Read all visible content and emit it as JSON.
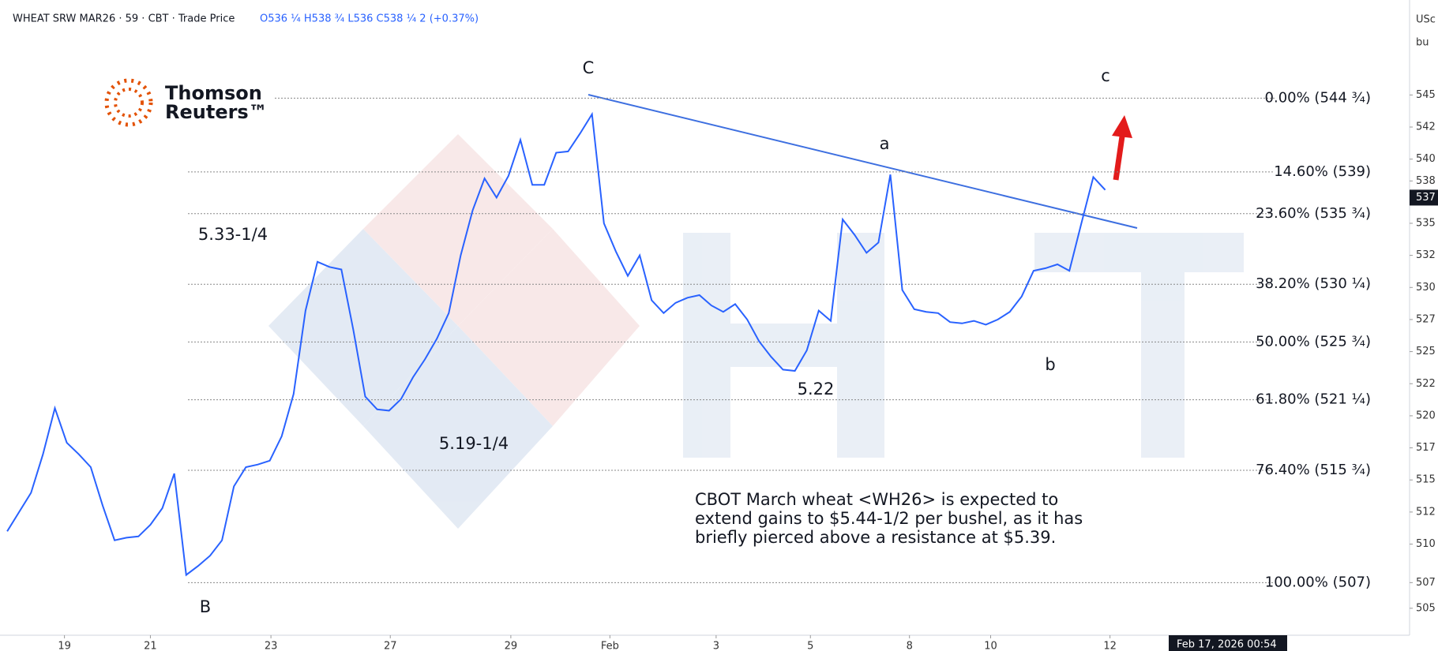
{
  "chart_data": {
    "type": "line",
    "title": "WHEAT SRW MAR26 · 59 · CBT · Trade Price",
    "ohlc": "O536 ¼ H538 ¾ L536 C538 ¼ 2 (+0.37%)",
    "unit_label": [
      "USc",
      "bu"
    ],
    "series": [
      {
        "name": "WHEAT SRW MAR26",
        "color": "#2962ff",
        "x": [
          0,
          1,
          2,
          3,
          4,
          5,
          6,
          7,
          8,
          9,
          10,
          11,
          12,
          13,
          14,
          15,
          16,
          17,
          18,
          19,
          20,
          21,
          22,
          23,
          24,
          25,
          26,
          27,
          28,
          29,
          30,
          31,
          32,
          33,
          34,
          35,
          36,
          37,
          38,
          39,
          40,
          41,
          42,
          43,
          44,
          45,
          46,
          47,
          48,
          49,
          50,
          51,
          52,
          53,
          54,
          55,
          56,
          57,
          58,
          59,
          60,
          61,
          62,
          63,
          64,
          65,
          66,
          67,
          68,
          69,
          70,
          71,
          72,
          73,
          74,
          75,
          76,
          77,
          78,
          79,
          80,
          81,
          82,
          83,
          84,
          85,
          86,
          87,
          88,
          89,
          90,
          91,
          92
        ],
        "values": [
          511,
          512.5,
          514,
          517,
          520.6,
          517.9,
          517,
          516,
          513,
          510.3,
          510.5,
          510.6,
          511.5,
          512.8,
          515.5,
          507.6,
          508.3,
          509.1,
          510.3,
          514.5,
          516,
          516.2,
          516.5,
          518.4,
          521.7,
          528.2,
          532,
          531.6,
          531.4,
          526.7,
          521.5,
          520.5,
          520.4,
          521.3,
          523,
          524.4,
          526,
          528,
          532.5,
          536,
          538.5,
          537,
          538.7,
          541.5,
          538,
          538,
          540.5,
          540.6,
          542,
          543.5,
          535,
          532.8,
          530.9,
          532.5,
          529,
          528,
          528.8,
          529.2,
          529.4,
          528.6,
          528.1,
          528.7,
          527.5,
          525.8,
          524.6,
          523.6,
          523.5,
          525.1,
          528.2,
          527.4,
          535.3,
          534.1,
          532.7,
          533.5,
          538.8,
          529.8,
          528.3,
          528.1,
          528,
          527.3,
          527.2,
          527.4,
          527.1,
          527.5,
          528.1,
          529.3,
          531.3,
          531.5,
          531.8,
          531.3,
          535,
          538.6,
          537.6
        ]
      }
    ],
    "xlim": [
      -0.6,
      117.5
    ],
    "xticks": [
      {
        "value": 4.8,
        "label": "19"
      },
      {
        "value": 12,
        "label": "21"
      },
      {
        "value": 22.1,
        "label": "23"
      },
      {
        "value": 32.1,
        "label": "27"
      },
      {
        "value": 42.2,
        "label": "29"
      },
      {
        "value": 50.5,
        "label": "Feb"
      },
      {
        "value": 59.4,
        "label": "3"
      },
      {
        "value": 67.3,
        "label": "5"
      },
      {
        "value": 75.6,
        "label": "8"
      },
      {
        "value": 82.4,
        "label": "10"
      },
      {
        "value": 92.4,
        "label": "12"
      }
    ],
    "ylim": [
      502.9,
      552.4
    ],
    "yticks": [
      545,
      {
        "value": 542.5,
        "label": "542"
      },
      540,
      {
        "value": 538.3,
        "label": "538"
      },
      535,
      {
        "value": 532.5,
        "label": "532"
      },
      530,
      {
        "value": 527.5,
        "label": "527"
      },
      525,
      {
        "value": 522.5,
        "label": "522"
      },
      520,
      {
        "value": 517.5,
        "label": "517"
      },
      515,
      {
        "value": 512.5,
        "label": "512"
      },
      510,
      507,
      505
    ],
    "last_price": 537,
    "fib_levels": [
      {
        "label": "0.00% (544 ¾)",
        "value": 544.75
      },
      {
        "label": "14.60% (539)",
        "value": 539
      },
      {
        "label": "23.60% (535 ¾)",
        "value": 535.75
      },
      {
        "label": "38.20% (530 ¼)",
        "value": 530.25
      },
      {
        "label": "50.00% (525 ¾)",
        "value": 525.75
      },
      {
        "label": "61.80% (521 ¼)",
        "value": 521.25
      },
      {
        "label": "76.40% (515 ¾)",
        "value": 515.75
      },
      {
        "label": "100.00% (507)",
        "value": 507
      }
    ],
    "annotations": [
      "B",
      "C",
      "a",
      "b",
      "c",
      "5.33-1/4",
      "5.19-1/4",
      "5.22"
    ],
    "caption": [
      "CBOT March wheat <WH26> is expected to",
      "extend gains to $5.44-1/2 per bushel, as it has",
      "briefly pierced above a resistance at $5.39."
    ],
    "logo": [
      "Thomson",
      "Reuters™"
    ],
    "crosshair_date": "Feb 17, 2026   00:54"
  }
}
